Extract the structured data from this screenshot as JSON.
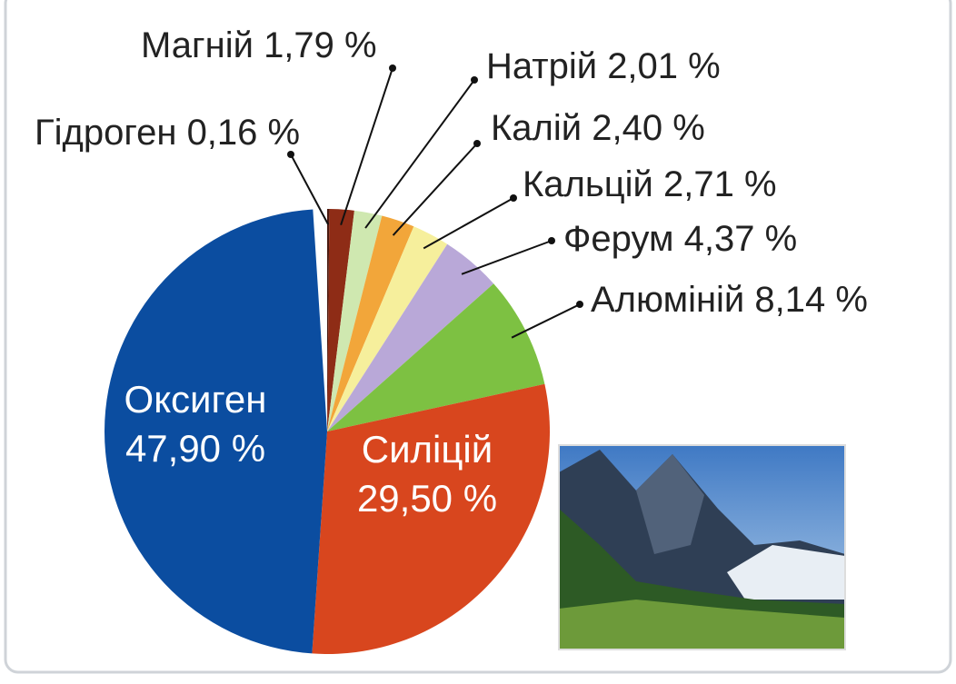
{
  "chart_data": {
    "type": "pie",
    "categories": [
      "Гідроген",
      "Магній",
      "Натрій",
      "Калій",
      "Кальцій",
      "Ферум",
      "Алюміній",
      "Силіцій",
      "Оксиген"
    ],
    "values": [
      0.16,
      1.79,
      2.01,
      2.4,
      2.71,
      4.37,
      8.14,
      29.5,
      47.9
    ],
    "value_labels": [
      "0,16 %",
      "1,79 %",
      "2,01 %",
      "2,40 %",
      "2,71 %",
      "4,37 %",
      "8,14 %",
      "29,50 %",
      "47,90 %"
    ],
    "colors": [
      "#4a1a10",
      "#8e2c16",
      "#cfe8b0",
      "#f2a63a",
      "#f6ef9c",
      "#b9a8d8",
      "#7dc142",
      "#d8461e",
      "#0b4da0"
    ]
  }
}
